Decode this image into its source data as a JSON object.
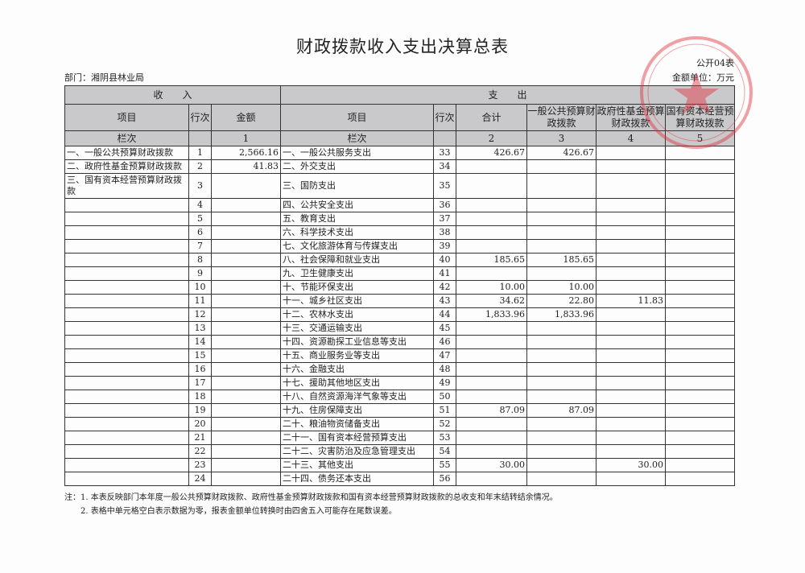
{
  "title": "财政拨款收入支出决算总表",
  "form_no": "公开04表",
  "department": "部门：湘阴县林业局",
  "unit": "金额单位：万元",
  "stamp_text": "湘阴县林业局",
  "header": {
    "income": "收　　入",
    "expense": "支　　出",
    "item": "项目",
    "row_no": "行次",
    "amount": "金额",
    "item2": "项目",
    "row_no2": "行次",
    "total": "合计",
    "general": "一般公共预算财政拨款",
    "fund": "政府性基金预算财政拨款",
    "state": "国有资本经营预算财政拨款",
    "col_label": "栏次",
    "col1": "1",
    "col_label2": "栏次",
    "col2": "2",
    "col3": "3",
    "col4": "4",
    "col5": "5"
  },
  "rows": [
    {
      "in_item": "一、一般公共预算财政拨款",
      "in_no": "1",
      "in_amt": "2,566.16",
      "ex_item": "一、一般公共服务支出",
      "ex_no": "33",
      "total": "426.67",
      "general": "426.67",
      "fund": "",
      "state": ""
    },
    {
      "in_item": "二、政府性基金预算财政拨款",
      "in_no": "2",
      "in_amt": "41.83",
      "ex_item": "二、外交支出",
      "ex_no": "34",
      "total": "",
      "general": "",
      "fund": "",
      "state": ""
    },
    {
      "in_item": "三、国有资本经营预算财政拨款",
      "in_no": "3",
      "in_amt": "",
      "ex_item": "三、国防支出",
      "ex_no": "35",
      "total": "",
      "general": "",
      "fund": "",
      "state": ""
    },
    {
      "in_item": "",
      "in_no": "4",
      "in_amt": "",
      "ex_item": "四、公共安全支出",
      "ex_no": "36",
      "total": "",
      "general": "",
      "fund": "",
      "state": ""
    },
    {
      "in_item": "",
      "in_no": "5",
      "in_amt": "",
      "ex_item": "五、教育支出",
      "ex_no": "37",
      "total": "",
      "general": "",
      "fund": "",
      "state": ""
    },
    {
      "in_item": "",
      "in_no": "6",
      "in_amt": "",
      "ex_item": "六、科学技术支出",
      "ex_no": "38",
      "total": "",
      "general": "",
      "fund": "",
      "state": ""
    },
    {
      "in_item": "",
      "in_no": "7",
      "in_amt": "",
      "ex_item": "七、文化旅游体育与传媒支出",
      "ex_no": "39",
      "total": "",
      "general": "",
      "fund": "",
      "state": ""
    },
    {
      "in_item": "",
      "in_no": "8",
      "in_amt": "",
      "ex_item": "八、社会保障和就业支出",
      "ex_no": "40",
      "total": "185.65",
      "general": "185.65",
      "fund": "",
      "state": ""
    },
    {
      "in_item": "",
      "in_no": "9",
      "in_amt": "",
      "ex_item": "九、卫生健康支出",
      "ex_no": "41",
      "total": "",
      "general": "",
      "fund": "",
      "state": ""
    },
    {
      "in_item": "",
      "in_no": "10",
      "in_amt": "",
      "ex_item": "十、节能环保支出",
      "ex_no": "42",
      "total": "10.00",
      "general": "10.00",
      "fund": "",
      "state": ""
    },
    {
      "in_item": "",
      "in_no": "11",
      "in_amt": "",
      "ex_item": "十一、城乡社区支出",
      "ex_no": "43",
      "total": "34.62",
      "general": "22.80",
      "fund": "11.83",
      "state": ""
    },
    {
      "in_item": "",
      "in_no": "12",
      "in_amt": "",
      "ex_item": "十二、农林水支出",
      "ex_no": "44",
      "total": "1,833.96",
      "general": "1,833.96",
      "fund": "",
      "state": ""
    },
    {
      "in_item": "",
      "in_no": "13",
      "in_amt": "",
      "ex_item": "十三、交通运输支出",
      "ex_no": "45",
      "total": "",
      "general": "",
      "fund": "",
      "state": ""
    },
    {
      "in_item": "",
      "in_no": "14",
      "in_amt": "",
      "ex_item": "十四、资源勘探工业信息等支出",
      "ex_no": "46",
      "total": "",
      "general": "",
      "fund": "",
      "state": ""
    },
    {
      "in_item": "",
      "in_no": "15",
      "in_amt": "",
      "ex_item": "十五、商业服务业等支出",
      "ex_no": "47",
      "total": "",
      "general": "",
      "fund": "",
      "state": ""
    },
    {
      "in_item": "",
      "in_no": "16",
      "in_amt": "",
      "ex_item": "十六、金融支出",
      "ex_no": "48",
      "total": "",
      "general": "",
      "fund": "",
      "state": ""
    },
    {
      "in_item": "",
      "in_no": "17",
      "in_amt": "",
      "ex_item": "十七、援助其他地区支出",
      "ex_no": "49",
      "total": "",
      "general": "",
      "fund": "",
      "state": ""
    },
    {
      "in_item": "",
      "in_no": "18",
      "in_amt": "",
      "ex_item": "十八、自然资源海洋气象等支出",
      "ex_no": "50",
      "total": "",
      "general": "",
      "fund": "",
      "state": ""
    },
    {
      "in_item": "",
      "in_no": "19",
      "in_amt": "",
      "ex_item": "十九、住房保障支出",
      "ex_no": "51",
      "total": "87.09",
      "general": "87.09",
      "fund": "",
      "state": ""
    },
    {
      "in_item": "",
      "in_no": "20",
      "in_amt": "",
      "ex_item": "二十、粮油物资储备支出",
      "ex_no": "52",
      "total": "",
      "general": "",
      "fund": "",
      "state": ""
    },
    {
      "in_item": "",
      "in_no": "21",
      "in_amt": "",
      "ex_item": "二十一、国有资本经营预算支出",
      "ex_no": "53",
      "total": "",
      "general": "",
      "fund": "",
      "state": ""
    },
    {
      "in_item": "",
      "in_no": "22",
      "in_amt": "",
      "ex_item": "二十二、灾害防治及应急管理支出",
      "ex_no": "54",
      "total": "",
      "general": "",
      "fund": "",
      "state": ""
    },
    {
      "in_item": "",
      "in_no": "23",
      "in_amt": "",
      "ex_item": "二十三、其他支出",
      "ex_no": "55",
      "total": "30.00",
      "general": "",
      "fund": "30.00",
      "state": ""
    },
    {
      "in_item": "",
      "in_no": "24",
      "in_amt": "",
      "ex_item": "二十四、债务还本支出",
      "ex_no": "56",
      "total": "",
      "general": "",
      "fund": "",
      "state": ""
    }
  ],
  "notes": [
    "注：1. 本表反映部门本年度一般公共预算财政拨款、政府性基金预算财政拨款和国有资本经营预算财政拨款的总收支和年末结转结余情况。",
    "　　2. 表格中单元格空白表示数据为零，报表金额单位转换时由四舍五入可能存在尾数误差。"
  ]
}
